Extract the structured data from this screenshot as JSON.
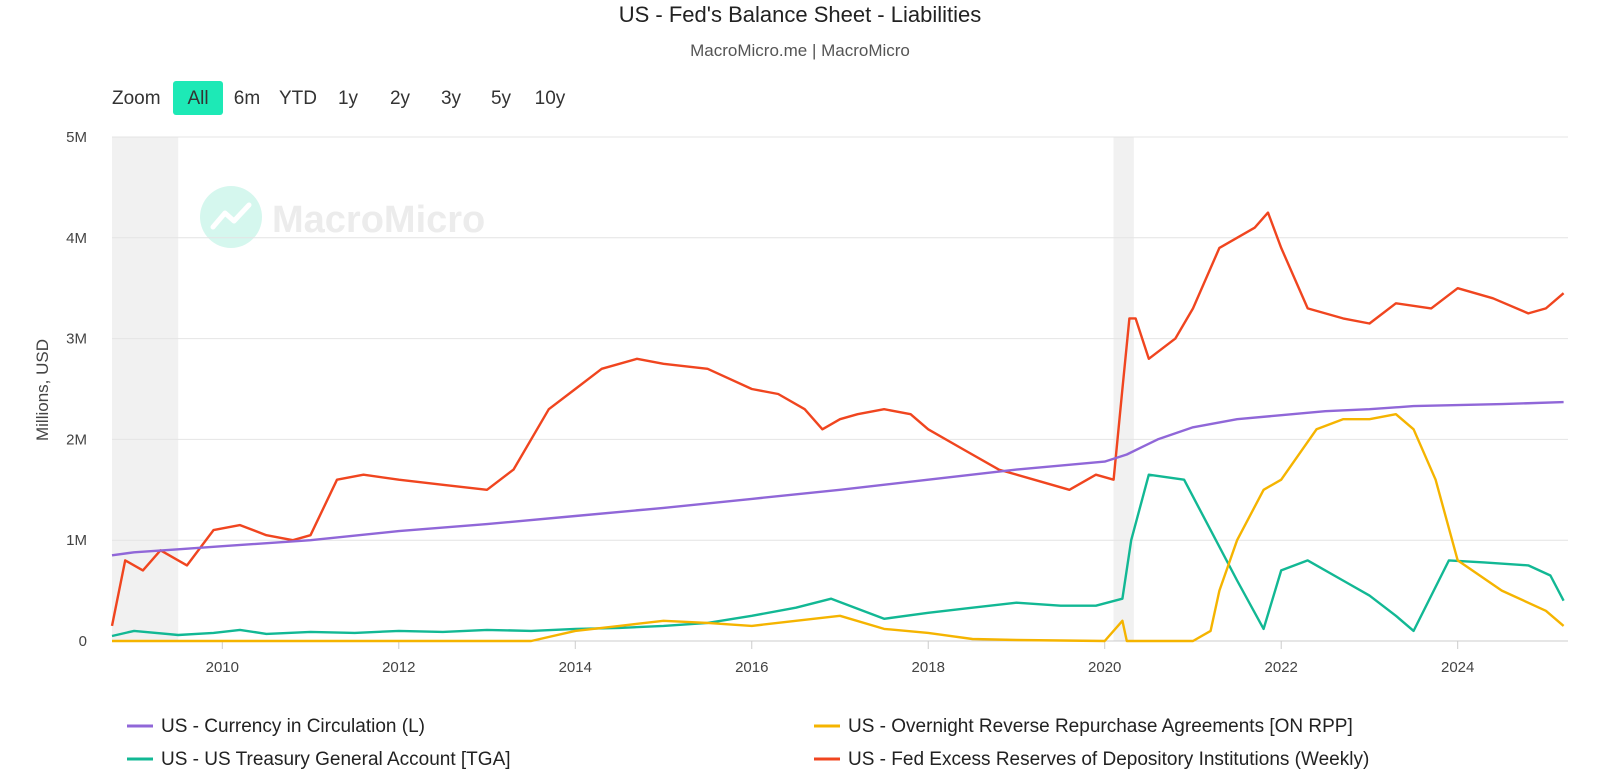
{
  "header": {
    "title": "US - Fed's Balance Sheet - Liabilities",
    "subtitle": "MacroMicro.me | MacroMicro"
  },
  "zoom": {
    "label": "Zoom",
    "buttons": [
      "All",
      "6m",
      "YTD",
      "1y",
      "2y",
      "3y",
      "5y",
      "10y"
    ],
    "active": "All",
    "active_color": "#1de9b6"
  },
  "watermark": {
    "text": "MacroMicro",
    "icon": "trend-chart-logo-icon"
  },
  "chart_data": {
    "type": "line",
    "title": "US - Fed's Balance Sheet - Liabilities",
    "ylabel": "Millions, USD",
    "xlabel": "",
    "xlim": [
      2008.75,
      2025.25
    ],
    "ylim": [
      0,
      5000000
    ],
    "x_ticks": [
      2010,
      2012,
      2014,
      2016,
      2018,
      2020,
      2022,
      2024
    ],
    "x_tick_labels": [
      "2010",
      "2012",
      "2014",
      "2016",
      "2018",
      "2020",
      "2022",
      "2024"
    ],
    "y_ticks": [
      0,
      1000000,
      2000000,
      3000000,
      4000000,
      5000000
    ],
    "y_tick_labels": [
      "0",
      "1M",
      "2M",
      "3M",
      "4M",
      "5M"
    ],
    "grid": "horizontal",
    "legend_position": "bottom",
    "recession_bands": [
      [
        2008.75,
        2009.5
      ],
      [
        2020.1,
        2020.33
      ]
    ],
    "series": [
      {
        "name": "US - Currency in Circulation (L)",
        "color": "#9067d8",
        "x": [
          2008.75,
          2009.0,
          2009.5,
          2010.0,
          2011.0,
          2012.0,
          2013.0,
          2014.0,
          2015.0,
          2016.0,
          2017.0,
          2018.0,
          2019.0,
          2020.0,
          2020.25,
          2020.6,
          2021.0,
          2021.5,
          2022.0,
          2022.5,
          2023.0,
          2023.5,
          2024.0,
          2024.5,
          2025.2
        ],
        "y": [
          850000,
          880000,
          910000,
          940000,
          1000000,
          1090000,
          1160000,
          1240000,
          1320000,
          1410000,
          1500000,
          1600000,
          1700000,
          1780000,
          1850000,
          2000000,
          2120000,
          2200000,
          2240000,
          2280000,
          2300000,
          2330000,
          2340000,
          2350000,
          2370000
        ]
      },
      {
        "name": "US - US Treasury General Account [TGA]",
        "color": "#12b894",
        "x": [
          2008.75,
          2009.0,
          2009.5,
          2009.9,
          2010.2,
          2010.5,
          2011.0,
          2011.5,
          2012.0,
          2012.5,
          2013.0,
          2013.5,
          2014.0,
          2014.5,
          2015.0,
          2015.5,
          2016.0,
          2016.5,
          2016.9,
          2017.2,
          2017.5,
          2018.0,
          2018.5,
          2019.0,
          2019.5,
          2019.9,
          2020.2,
          2020.3,
          2020.5,
          2020.9,
          2021.2,
          2021.5,
          2021.8,
          2022.0,
          2022.3,
          2022.7,
          2023.0,
          2023.3,
          2023.5,
          2023.9,
          2024.3,
          2024.8,
          2025.05,
          2025.2
        ],
        "y": [
          50000,
          100000,
          60000,
          80000,
          110000,
          70000,
          90000,
          80000,
          100000,
          90000,
          110000,
          100000,
          120000,
          130000,
          150000,
          180000,
          250000,
          330000,
          420000,
          320000,
          220000,
          280000,
          330000,
          380000,
          350000,
          350000,
          420000,
          1000000,
          1650000,
          1600000,
          1100000,
          600000,
          120000,
          700000,
          800000,
          600000,
          450000,
          250000,
          100000,
          800000,
          780000,
          750000,
          650000,
          400000
        ]
      },
      {
        "name": "US - Overnight Reverse Repurchase Agreements [ON RPP]",
        "color": "#f5b400",
        "x": [
          2008.75,
          2013.5,
          2014.0,
          2014.5,
          2015.0,
          2015.5,
          2016.0,
          2016.5,
          2017.0,
          2017.5,
          2018.0,
          2018.5,
          2019.0,
          2020.0,
          2020.2,
          2020.25,
          2020.5,
          2021.0,
          2021.2,
          2021.3,
          2021.5,
          2021.8,
          2022.0,
          2022.4,
          2022.7,
          2023.0,
          2023.3,
          2023.5,
          2023.75,
          2024.0,
          2024.5,
          2025.0,
          2025.2
        ],
        "y": [
          0,
          0,
          100000,
          150000,
          200000,
          180000,
          150000,
          200000,
          250000,
          120000,
          80000,
          20000,
          10000,
          0,
          200000,
          0,
          0,
          0,
          100000,
          500000,
          1000000,
          1500000,
          1600000,
          2100000,
          2200000,
          2200000,
          2250000,
          2100000,
          1600000,
          800000,
          500000,
          300000,
          150000
        ]
      },
      {
        "name": "US - Fed Excess Reserves of Depository Institutions (Weekly)",
        "color": "#f0451f",
        "x": [
          2008.75,
          2008.9,
          2009.1,
          2009.3,
          2009.6,
          2009.9,
          2010.2,
          2010.5,
          2010.8,
          2011.0,
          2011.3,
          2011.6,
          2012.0,
          2012.5,
          2013.0,
          2013.3,
          2013.7,
          2014.0,
          2014.3,
          2014.7,
          2015.0,
          2015.5,
          2016.0,
          2016.3,
          2016.6,
          2016.8,
          2017.0,
          2017.2,
          2017.5,
          2017.8,
          2018.0,
          2018.4,
          2018.8,
          2019.2,
          2019.6,
          2019.9,
          2020.1,
          2020.2,
          2020.28,
          2020.35,
          2020.5,
          2020.8,
          2021.0,
          2021.3,
          2021.7,
          2021.85,
          2022.0,
          2022.3,
          2022.7,
          2023.0,
          2023.3,
          2023.7,
          2024.0,
          2024.4,
          2024.8,
          2025.0,
          2025.2
        ],
        "y": [
          150000,
          800000,
          700000,
          900000,
          750000,
          1100000,
          1150000,
          1050000,
          1000000,
          1050000,
          1600000,
          1650000,
          1600000,
          1550000,
          1500000,
          1700000,
          2300000,
          2500000,
          2700000,
          2800000,
          2750000,
          2700000,
          2500000,
          2450000,
          2300000,
          2100000,
          2200000,
          2250000,
          2300000,
          2250000,
          2100000,
          1900000,
          1700000,
          1600000,
          1500000,
          1650000,
          1600000,
          2500000,
          3200000,
          3200000,
          2800000,
          3000000,
          3300000,
          3900000,
          4100000,
          4250000,
          3900000,
          3300000,
          3200000,
          3150000,
          3350000,
          3300000,
          3500000,
          3400000,
          3250000,
          3300000,
          3450000
        ]
      }
    ]
  }
}
